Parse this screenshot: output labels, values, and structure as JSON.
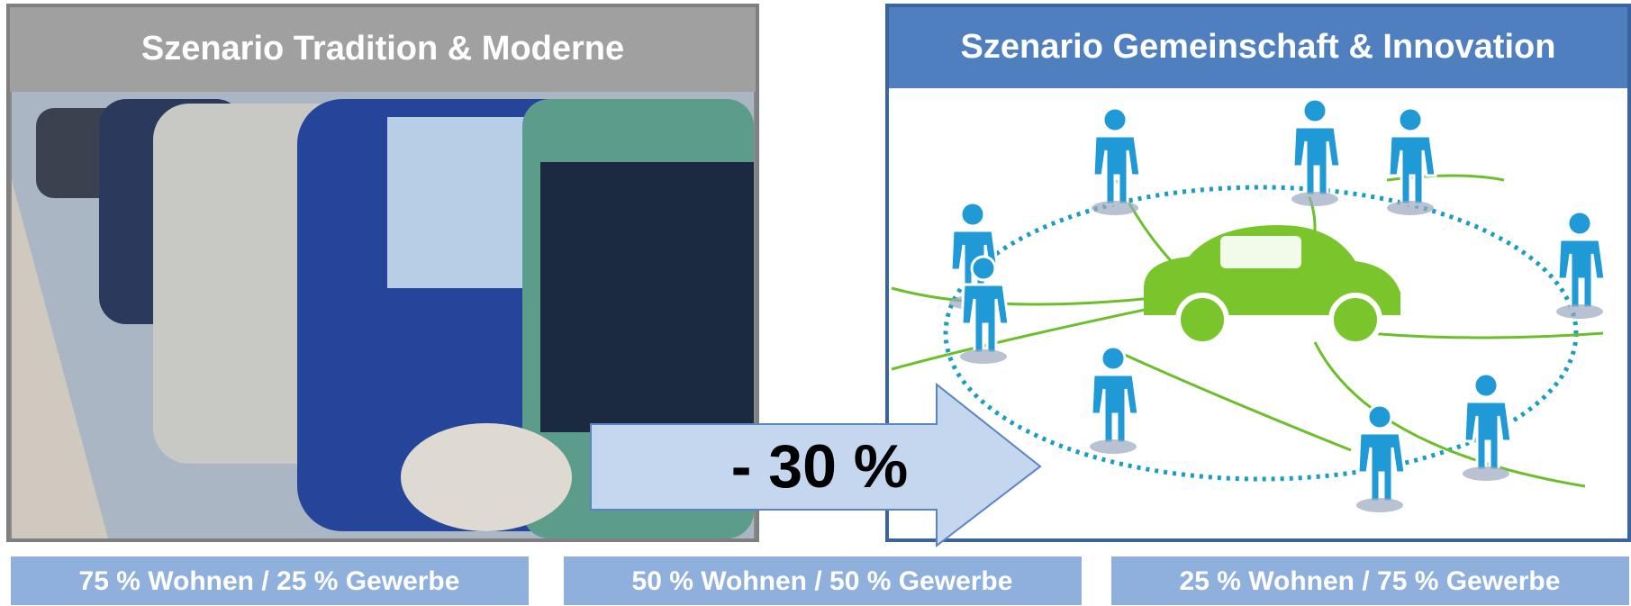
{
  "panels": [
    {
      "title": "Szenario Tradition & Moderne"
    },
    {
      "title": "Szenario Gemeinschaft & Innovation"
    }
  ],
  "arrow": {
    "label": "- 30 %"
  },
  "boxes": [
    {
      "label": "75 % Wohnen / 25 % Gewerbe"
    },
    {
      "label": "50 % Wohnen / 50 % Gewerbe"
    },
    {
      "label": "25 % Wohnen / 75 % Gewerbe"
    }
  ]
}
